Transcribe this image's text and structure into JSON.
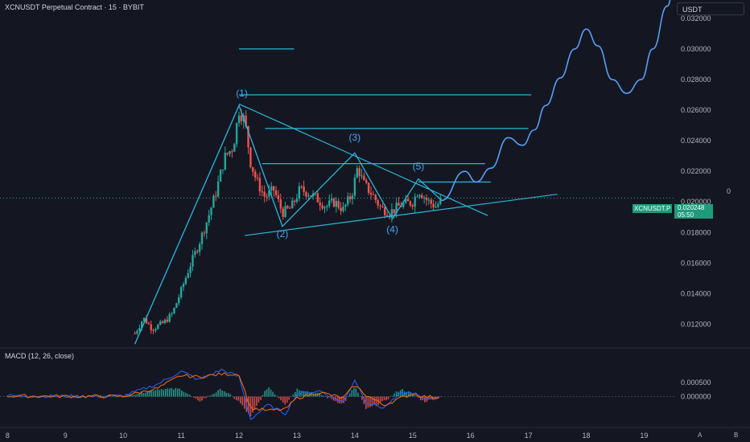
{
  "header": {
    "title": "XCNUSDT Perpetual Contract · 15 · BYBIT"
  },
  "currency": "USDT",
  "price_tag": {
    "symbol": "XCNUSDT.P",
    "price": "0.020248",
    "countdown": "05:50"
  },
  "right_zero": "0",
  "macd": {
    "title": "MACD (12, 26, close)"
  },
  "corner_buttons": [
    "A",
    "B"
  ],
  "colors": {
    "background": "#141722",
    "up": "#26a69a",
    "down": "#ef5350",
    "drawing": "#29b6d9",
    "projection": "#5b9cf6",
    "macd": "#2962ff",
    "signal": "#ff6d00"
  },
  "chart_data": [
    {
      "type": "candlestick",
      "y_axis_ticks": [
        "0.032000",
        "0.030000",
        "0.028000",
        "0.026000",
        "0.024000",
        "0.022000",
        "0.020000",
        "0.018000",
        "0.016000",
        "0.014000",
        "0.012000"
      ],
      "x_axis_ticks": [
        "8",
        "9",
        "10",
        "11",
        "12",
        "13",
        "14",
        "15",
        "16",
        "17",
        "18",
        "19"
      ],
      "ylim": [
        0.0105,
        0.0332
      ],
      "xlim": [
        7.87,
        19.55
      ],
      "price_path": [
        [
          10.2,
          0.0114
        ],
        [
          10.35,
          0.0124
        ],
        [
          10.5,
          0.0117
        ],
        [
          10.7,
          0.0121
        ],
        [
          10.85,
          0.0127
        ],
        [
          11.0,
          0.0142
        ],
        [
          11.15,
          0.0158
        ],
        [
          11.3,
          0.0172
        ],
        [
          11.45,
          0.0188
        ],
        [
          11.6,
          0.0206
        ],
        [
          11.75,
          0.0229
        ],
        [
          11.9,
          0.0236
        ],
        [
          12.0,
          0.026
        ],
        [
          12.1,
          0.0253
        ],
        [
          12.2,
          0.0226
        ],
        [
          12.3,
          0.0214
        ],
        [
          12.45,
          0.0203
        ],
        [
          12.6,
          0.0208
        ],
        [
          12.75,
          0.0193
        ],
        [
          12.9,
          0.0196
        ],
        [
          13.05,
          0.0208
        ],
        [
          13.2,
          0.0206
        ],
        [
          13.35,
          0.0202
        ],
        [
          13.5,
          0.0197
        ],
        [
          13.65,
          0.02
        ],
        [
          13.8,
          0.0195
        ],
        [
          13.95,
          0.0205
        ],
        [
          14.05,
          0.0223
        ],
        [
          14.15,
          0.0212
        ],
        [
          14.3,
          0.0205
        ],
        [
          14.45,
          0.0196
        ],
        [
          14.6,
          0.0193
        ],
        [
          14.8,
          0.0198
        ],
        [
          15.0,
          0.02
        ],
        [
          15.1,
          0.0208
        ],
        [
          15.25,
          0.0201
        ],
        [
          15.4,
          0.0197
        ],
        [
          15.5,
          0.0201
        ]
      ],
      "labels": [
        "(1)",
        "(2)",
        "(3)",
        "(4)",
        "(5)"
      ],
      "label_points": [
        [
          12.05,
          0.0269
        ],
        [
          12.75,
          0.0177
        ],
        [
          14.0,
          0.024
        ],
        [
          14.65,
          0.018
        ],
        [
          15.1,
          0.0221
        ]
      ],
      "wave_points": [
        [
          10.2,
          0.0107
        ],
        [
          12.0,
          0.0263
        ],
        [
          12.75,
          0.0184
        ],
        [
          14.0,
          0.0232
        ],
        [
          14.65,
          0.0189
        ],
        [
          15.1,
          0.0215
        ],
        [
          15.5,
          0.0201
        ]
      ],
      "projection_path": [
        [
          15.5,
          0.0201
        ],
        [
          15.9,
          0.022
        ],
        [
          16.1,
          0.0213
        ],
        [
          16.35,
          0.0222
        ],
        [
          16.65,
          0.0242
        ],
        [
          16.9,
          0.0237
        ],
        [
          17.1,
          0.0247
        ],
        [
          17.3,
          0.0263
        ],
        [
          17.55,
          0.0281
        ],
        [
          17.8,
          0.03
        ],
        [
          18.0,
          0.0313
        ],
        [
          18.2,
          0.0302
        ],
        [
          18.45,
          0.028
        ],
        [
          18.7,
          0.0271
        ],
        [
          18.95,
          0.028
        ],
        [
          19.15,
          0.03
        ],
        [
          19.4,
          0.0328
        ],
        [
          19.5,
          0.0337
        ]
      ],
      "horizontal_levels": [
        [
          12.0,
          12.95,
          0.03
        ],
        [
          12.0,
          17.05,
          0.027
        ],
        [
          12.45,
          17.0,
          0.0248
        ],
        [
          12.4,
          16.25,
          0.0225
        ],
        [
          15.1,
          16.35,
          0.0213
        ]
      ],
      "trendlines": [
        [
          [
            12.0,
            0.0264
          ],
          [
            16.3,
            0.0191
          ]
        ],
        [
          [
            12.1,
            0.0178
          ],
          [
            17.5,
            0.0205
          ]
        ]
      ],
      "last_price_line": 0.020248
    },
    {
      "type": "line",
      "title": "MACD (12, 26, close)",
      "y_axis_ticks": [
        "0.000500",
        "0.000000"
      ],
      "ylim": [
        -0.0011,
        0.0017
      ],
      "series": [
        {
          "x": [
            8.0,
            9.0,
            10.0,
            10.6,
            11.0,
            11.3,
            11.7,
            12.0,
            12.2,
            12.5,
            12.8,
            13.0,
            13.4,
            13.8,
            14.0,
            14.2,
            14.5,
            14.8,
            15.0,
            15.2,
            15.5
          ],
          "values": [
            3e-05,
            1e-05,
            2e-05,
            0.00045,
            0.0009,
            0.0006,
            0.00095,
            0.0007,
            -0.0008,
            -0.0003,
            -0.0006,
            0.0001,
            0.0002,
            -0.0002,
            0.0006,
            -0.0002,
            -0.0004,
            0.0001,
            0.00015,
            -0.0001,
            -2e-05
          ]
        },
        {
          "x": [
            8.0,
            9.0,
            10.0,
            10.6,
            11.0,
            11.3,
            11.7,
            12.0,
            12.2,
            12.5,
            12.8,
            13.0,
            13.4,
            13.8,
            14.0,
            14.2,
            14.5,
            14.8,
            15.0,
            15.2,
            15.5
          ],
          "values": [
            2e-05,
            1e-05,
            1e-05,
            0.0003,
            0.00075,
            0.0007,
            0.0008,
            0.0008,
            -0.0004,
            -0.0005,
            -0.00045,
            -5e-05,
            0.00015,
            -5e-05,
            0.0004,
            5e-05,
            -0.0003,
            -5e-05,
            0.0001,
            0.0,
            -3e-05
          ]
        }
      ]
    }
  ]
}
